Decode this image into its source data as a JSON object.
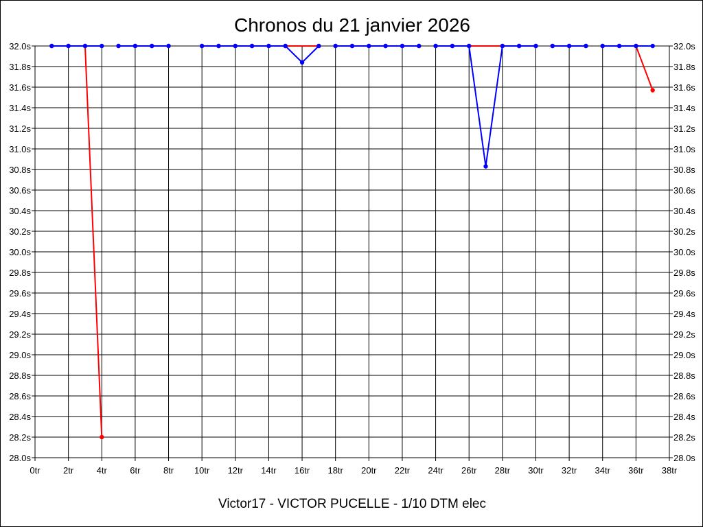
{
  "chart_data": {
    "type": "line",
    "title": "Chronos du 21 janvier 2026",
    "subtitle": "Victor17 - VICTOR PUCELLE - 1/10 DTM elec",
    "xlim": [
      0,
      38
    ],
    "ylim": [
      28.0,
      32.0
    ],
    "x_ticks": [
      "0tr",
      "2tr",
      "4tr",
      "6tr",
      "8tr",
      "10tr",
      "12tr",
      "14tr",
      "16tr",
      "18tr",
      "20tr",
      "22tr",
      "24tr",
      "26tr",
      "28tr",
      "30tr",
      "32tr",
      "34tr",
      "36tr",
      "38tr"
    ],
    "y_ticks": [
      "28.0s",
      "28.2s",
      "28.4s",
      "28.6s",
      "28.8s",
      "29.0s",
      "29.2s",
      "29.4s",
      "29.6s",
      "29.8s",
      "30.0s",
      "30.2s",
      "30.4s",
      "30.6s",
      "30.8s",
      "31.0s",
      "31.2s",
      "31.4s",
      "31.6s",
      "31.8s",
      "32.0s"
    ],
    "grid": true,
    "legend": false,
    "series": [
      {
        "color": "#ff0000",
        "segments": [
          [
            [
              1,
              32.0
            ],
            [
              2,
              32.0
            ],
            [
              3,
              32.0
            ],
            [
              4,
              28.2
            ]
          ],
          [
            [
              5,
              32.0
            ],
            [
              6,
              32.0
            ],
            [
              7,
              32.0
            ],
            [
              8,
              32.0
            ]
          ],
          [
            [
              10,
              32.0
            ],
            [
              11,
              32.0
            ],
            [
              12,
              32.0
            ],
            [
              13,
              32.0
            ],
            [
              14,
              32.0
            ],
            [
              15,
              32.0
            ],
            [
              17,
              32.0
            ]
          ],
          [
            [
              18,
              32.0
            ],
            [
              19,
              32.0
            ],
            [
              20,
              32.0
            ],
            [
              21,
              32.0
            ],
            [
              22,
              32.0
            ],
            [
              23,
              32.0
            ]
          ],
          [
            [
              24,
              32.0
            ],
            [
              25,
              32.0
            ],
            [
              26,
              32.0
            ],
            [
              28,
              32.0
            ],
            [
              29,
              32.0
            ],
            [
              30,
              32.0
            ]
          ],
          [
            [
              31,
              32.0
            ],
            [
              32,
              32.0
            ],
            [
              33,
              32.0
            ]
          ],
          [
            [
              34,
              32.0
            ],
            [
              35,
              32.0
            ],
            [
              36,
              32.0
            ],
            [
              37,
              31.57
            ]
          ]
        ]
      },
      {
        "color": "#0000ff",
        "segments": [
          [
            [
              1,
              32.0
            ],
            [
              2,
              32.0
            ],
            [
              3,
              32.0
            ],
            [
              4,
              32.0
            ]
          ],
          [
            [
              5,
              32.0
            ],
            [
              6,
              32.0
            ],
            [
              7,
              32.0
            ],
            [
              8,
              32.0
            ]
          ],
          [
            [
              10,
              32.0
            ],
            [
              11,
              32.0
            ],
            [
              12,
              32.0
            ],
            [
              13,
              32.0
            ],
            [
              14,
              32.0
            ],
            [
              15,
              32.0
            ],
            [
              16,
              31.84
            ],
            [
              17,
              32.0
            ]
          ],
          [
            [
              18,
              32.0
            ],
            [
              19,
              32.0
            ],
            [
              20,
              32.0
            ],
            [
              21,
              32.0
            ],
            [
              22,
              32.0
            ],
            [
              23,
              32.0
            ]
          ],
          [
            [
              24,
              32.0
            ],
            [
              25,
              32.0
            ],
            [
              26,
              32.0
            ],
            [
              27,
              30.83
            ],
            [
              28,
              32.0
            ],
            [
              29,
              32.0
            ],
            [
              30,
              32.0
            ]
          ],
          [
            [
              31,
              32.0
            ],
            [
              32,
              32.0
            ],
            [
              33,
              32.0
            ]
          ],
          [
            [
              34,
              32.0
            ],
            [
              35,
              32.0
            ],
            [
              36,
              32.0
            ],
            [
              37,
              32.0
            ]
          ]
        ]
      }
    ]
  }
}
